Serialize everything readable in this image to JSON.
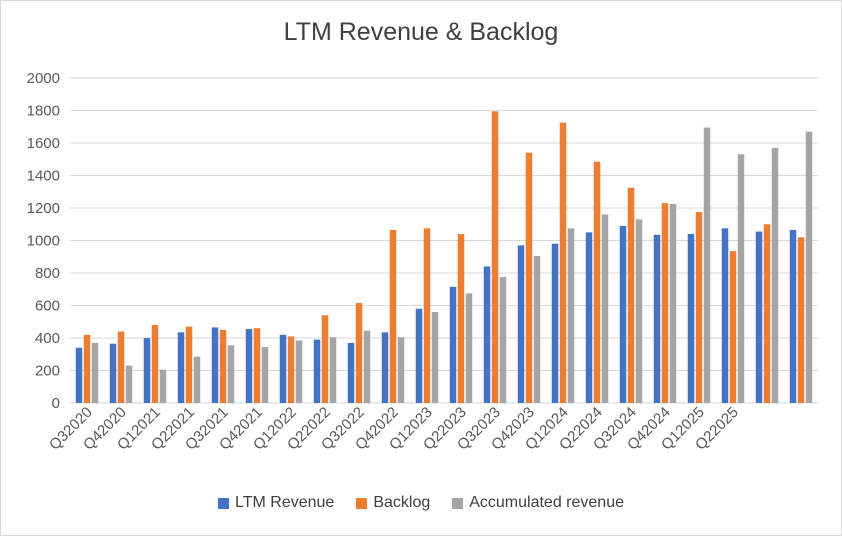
{
  "chart_data": {
    "type": "bar",
    "title": "LTM Revenue & Backlog",
    "xlabel": "",
    "ylabel": "",
    "ylim": [
      0,
      2000
    ],
    "yticks": [
      0,
      200,
      400,
      600,
      800,
      1000,
      1200,
      1400,
      1600,
      1800,
      2000
    ],
    "grid": true,
    "legend_position": "bottom",
    "categories": [
      "Q32020",
      "Q42020",
      "Q12021",
      "Q22021",
      "Q32021",
      "Q42021",
      "Q12022",
      "Q22022",
      "Q32022",
      "Q42022",
      "Q12023",
      "Q22023",
      "Q32023",
      "Q42023",
      "Q12024",
      "Q22024",
      "Q32024",
      "Q42024",
      "Q12025",
      "Q22025",
      "",
      ""
    ],
    "series": [
      {
        "name": "LTM Revenue",
        "color": "#4472C4",
        "values": [
          340,
          365,
          400,
          435,
          465,
          455,
          420,
          390,
          370,
          435,
          580,
          715,
          840,
          970,
          980,
          1050,
          1090,
          1035,
          1040,
          1075,
          1055,
          1065
        ]
      },
      {
        "name": "Backlog",
        "color": "#ED7D31",
        "values": [
          420,
          440,
          480,
          470,
          450,
          460,
          410,
          540,
          615,
          1065,
          1075,
          1040,
          1795,
          1540,
          1725,
          1485,
          1325,
          1230,
          1175,
          935,
          1100,
          1020
        ]
      },
      {
        "name": "Accumulated revenue",
        "color": "#A5A5A5",
        "values": [
          370,
          230,
          205,
          285,
          355,
          345,
          385,
          405,
          445,
          405,
          560,
          675,
          775,
          905,
          1075,
          1160,
          1130,
          1225,
          1695,
          1530,
          1570,
          1670
        ]
      }
    ]
  }
}
